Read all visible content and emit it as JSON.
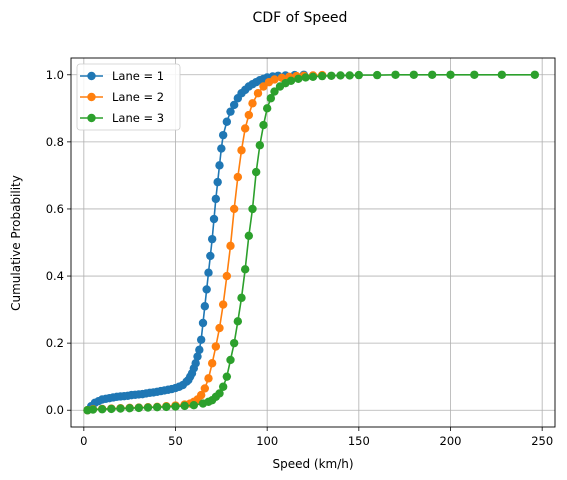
{
  "chart_data": {
    "type": "line",
    "title": "CDF of Speed",
    "xlabel": "Speed (km/h)",
    "ylabel": "Cumulative Probability",
    "xlim": [
      -7,
      257
    ],
    "ylim": [
      -0.05,
      1.05
    ],
    "xticks": [
      0,
      50,
      100,
      150,
      200,
      250
    ],
    "yticks": [
      0.0,
      0.2,
      0.4,
      0.6,
      0.8,
      1.0
    ],
    "grid": true,
    "legend_position": "top-left",
    "series": [
      {
        "name": "Lane = 1",
        "color": "#1f77b4",
        "x": [
          2,
          4,
          6,
          8,
          10,
          12,
          14,
          16,
          18,
          20,
          22,
          24,
          26,
          28,
          30,
          32,
          34,
          36,
          38,
          40,
          42,
          44,
          46,
          48,
          50,
          52,
          54,
          56,
          57,
          58,
          59,
          60,
          61,
          62,
          63,
          64,
          65,
          66,
          67,
          68,
          69,
          70,
          71,
          72,
          73,
          74,
          75,
          76,
          78,
          80,
          82,
          84,
          86,
          88,
          90,
          92,
          94,
          96,
          98,
          100,
          103,
          106,
          110,
          115,
          120
        ],
        "y": [
          0.0,
          0.012,
          0.022,
          0.027,
          0.032,
          0.034,
          0.036,
          0.038,
          0.04,
          0.041,
          0.042,
          0.043,
          0.045,
          0.046,
          0.047,
          0.048,
          0.05,
          0.052,
          0.053,
          0.055,
          0.057,
          0.059,
          0.061,
          0.063,
          0.066,
          0.07,
          0.075,
          0.085,
          0.09,
          0.1,
          0.11,
          0.125,
          0.14,
          0.16,
          0.18,
          0.21,
          0.26,
          0.31,
          0.36,
          0.41,
          0.46,
          0.51,
          0.57,
          0.63,
          0.68,
          0.73,
          0.78,
          0.82,
          0.86,
          0.89,
          0.91,
          0.93,
          0.945,
          0.955,
          0.965,
          0.972,
          0.978,
          0.984,
          0.988,
          0.992,
          0.995,
          0.997,
          0.998,
          0.999,
          1.0
        ]
      },
      {
        "name": "Lane = 2",
        "color": "#ff7f0e",
        "x": [
          2,
          5,
          10,
          15,
          20,
          25,
          30,
          35,
          40,
          45,
          50,
          55,
          58,
          60,
          62,
          64,
          66,
          68,
          70,
          72,
          74,
          76,
          78,
          80,
          82,
          84,
          86,
          88,
          90,
          92,
          95,
          98,
          101,
          104,
          108,
          112,
          116,
          120,
          125,
          130
        ],
        "y": [
          0.0,
          0.003,
          0.004,
          0.005,
          0.006,
          0.007,
          0.008,
          0.009,
          0.01,
          0.012,
          0.014,
          0.017,
          0.02,
          0.025,
          0.032,
          0.045,
          0.065,
          0.095,
          0.14,
          0.19,
          0.245,
          0.315,
          0.4,
          0.49,
          0.6,
          0.695,
          0.775,
          0.84,
          0.88,
          0.915,
          0.945,
          0.965,
          0.978,
          0.986,
          0.991,
          0.994,
          0.996,
          0.997,
          0.998,
          0.999
        ]
      },
      {
        "name": "Lane = 3",
        "color": "#2ca02c",
        "x": [
          2,
          5,
          10,
          15,
          20,
          25,
          30,
          35,
          40,
          45,
          50,
          55,
          60,
          65,
          68,
          70,
          72,
          74,
          76,
          78,
          80,
          82,
          84,
          86,
          88,
          90,
          92,
          94,
          96,
          98,
          100,
          102,
          104,
          107,
          110,
          113,
          117,
          121,
          125,
          130,
          135,
          140,
          145,
          150,
          160,
          170,
          180,
          190,
          200,
          213,
          228,
          246
        ],
        "y": [
          0.0,
          0.002,
          0.003,
          0.004,
          0.005,
          0.006,
          0.007,
          0.008,
          0.009,
          0.01,
          0.011,
          0.013,
          0.015,
          0.02,
          0.025,
          0.03,
          0.04,
          0.05,
          0.07,
          0.1,
          0.15,
          0.2,
          0.265,
          0.335,
          0.42,
          0.52,
          0.6,
          0.71,
          0.79,
          0.85,
          0.9,
          0.93,
          0.95,
          0.965,
          0.975,
          0.982,
          0.988,
          0.992,
          0.994,
          0.996,
          0.997,
          0.998,
          0.998,
          0.999,
          0.999,
          1.0,
          1.0,
          1.0,
          1.0,
          1.0,
          1.0,
          1.0
        ]
      }
    ]
  }
}
